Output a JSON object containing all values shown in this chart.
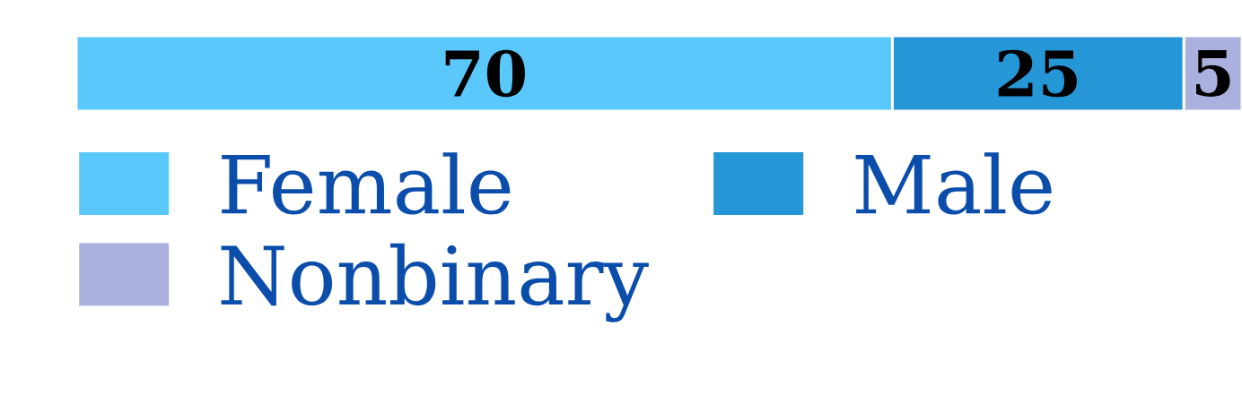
{
  "chart_data": {
    "type": "bar",
    "orientation": "horizontal",
    "stacked": true,
    "categories": [
      null
    ],
    "data_labels": true,
    "legend": "bottom left",
    "series": [
      {
        "name": "Female",
        "color": "#5bc8fc",
        "values": [
          70
        ]
      },
      {
        "name": "Male",
        "color": "#2596d6",
        "values": [
          25
        ]
      },
      {
        "name": "Nonbinary",
        "color": "#abb1de",
        "values": [
          5
        ]
      }
    ]
  }
}
